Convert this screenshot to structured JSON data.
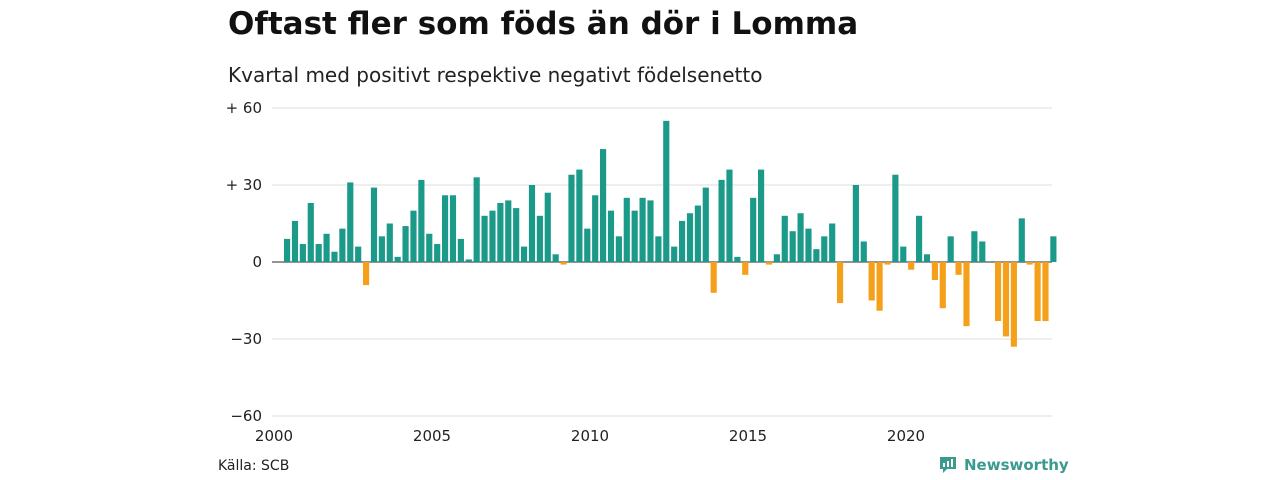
{
  "title": "Oftast fler som föds än dör i Lomma",
  "subtitle": "Kvartal med positivt respektive negativt födelsenetto",
  "source": "Källa: SCB",
  "brand": {
    "name": "Newsworthy",
    "icon": "newsworthy-logo-icon"
  },
  "colors": {
    "positive": "#1b9a8a",
    "negative": "#f5a01a",
    "grid": "#dddddd",
    "brand": "#3a9b8c"
  },
  "chart_data": {
    "type": "bar",
    "x_start": 2000,
    "periods_per_year": 4,
    "x_ticks": [
      "2000",
      "2005",
      "2010",
      "2015",
      "2020"
    ],
    "y_ticks": [
      "−60",
      "−30",
      "0",
      "+ 30",
      "+ 60"
    ],
    "ylim": [
      -60,
      60
    ],
    "grid": true,
    "values": [
      9,
      16,
      7,
      23,
      7,
      11,
      4,
      13,
      31,
      6,
      -9,
      29,
      10,
      15,
      2,
      14,
      20,
      32,
      11,
      7,
      26,
      26,
      9,
      1,
      33,
      18,
      20,
      23,
      24,
      21,
      6,
      30,
      18,
      27,
      3,
      -1,
      34,
      36,
      13,
      26,
      44,
      20,
      10,
      25,
      20,
      25,
      24,
      10,
      55,
      6,
      16,
      19,
      22,
      29,
      -12,
      32,
      36,
      2,
      -5,
      25,
      36,
      -1,
      3,
      18,
      12,
      19,
      13,
      5,
      10,
      15,
      -16,
      0,
      30,
      8,
      -15,
      -19,
      -1,
      34,
      6,
      -3,
      18,
      3,
      -7,
      -18,
      10,
      -5,
      -25,
      12,
      8,
      0,
      -23,
      -29,
      -33,
      17,
      -1,
      -23,
      -23,
      10
    ]
  }
}
